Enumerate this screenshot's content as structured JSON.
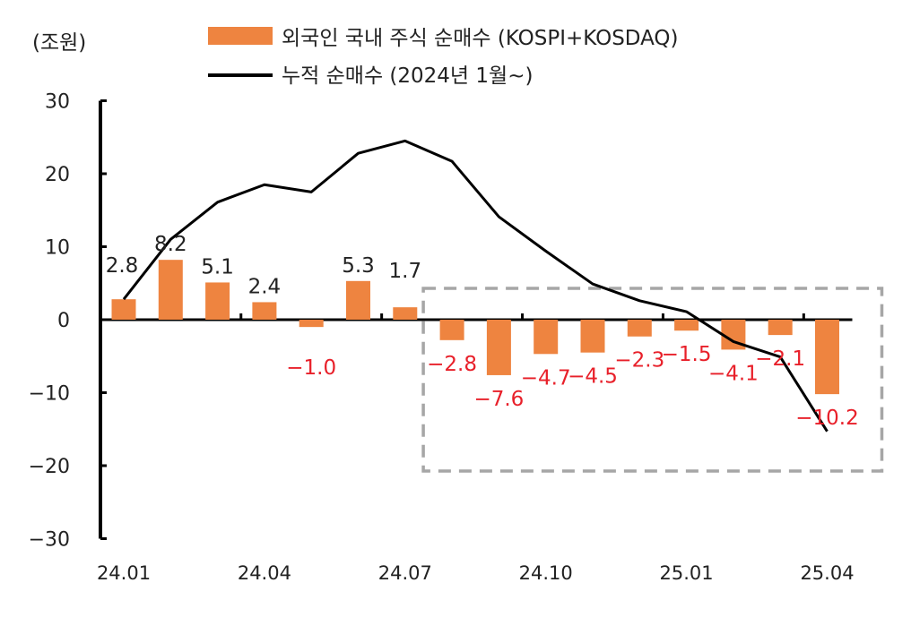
{
  "chart_data": {
    "type": "bar+line",
    "unit": "(조원)",
    "categories": [
      "24.01",
      "24.02",
      "24.03",
      "24.04",
      "24.05",
      "24.06",
      "24.07",
      "24.08",
      "24.09",
      "24.10",
      "24.11",
      "24.12",
      "25.01",
      "25.02",
      "25.03",
      "25.04"
    ],
    "x_tick_labels": [
      "24.01",
      "24.04",
      "24.07",
      "24.10",
      "25.01",
      "25.04"
    ],
    "y_ticks": [
      "30",
      "20",
      "10",
      "0",
      "−10",
      "−20",
      "−30"
    ],
    "ylim": [
      -30,
      30
    ],
    "series": [
      {
        "name": "외국인 국내 주식 순매수 (KOSPI+KOSDAQ)",
        "kind": "bar",
        "values": [
          2.8,
          8.2,
          5.1,
          2.4,
          -1.0,
          5.3,
          1.7,
          -2.8,
          -7.6,
          -4.7,
          -4.5,
          -2.3,
          -1.5,
          -4.1,
          -2.1,
          -10.2
        ],
        "labels": [
          "2.8",
          "8.2",
          "5.1",
          "2.4",
          "−1.0",
          "5.3",
          "1.7",
          "−2.8",
          "−7.6",
          "−4.7",
          "−4.5",
          "−2.3",
          "−1.5",
          "−4.1",
          "−2.1",
          "−10.2"
        ]
      },
      {
        "name": "누적 순매수 (2024년 1월~)",
        "kind": "line",
        "values": [
          2.8,
          11.0,
          16.1,
          18.5,
          17.5,
          22.8,
          24.5,
          21.7,
          14.1,
          9.4,
          4.9,
          2.6,
          1.1,
          -3.0,
          -5.1,
          -15.3
        ]
      }
    ],
    "colors": {
      "bar": "#ee8440",
      "line": "#000000",
      "negative_label": "#e8202a",
      "positive_label": "#222222",
      "highlight_box": "#a6a6a6"
    },
    "highlight": {
      "from": "24.08",
      "to": "25.04",
      "style": "dashed box"
    },
    "legend_position": "top",
    "grid": false
  }
}
